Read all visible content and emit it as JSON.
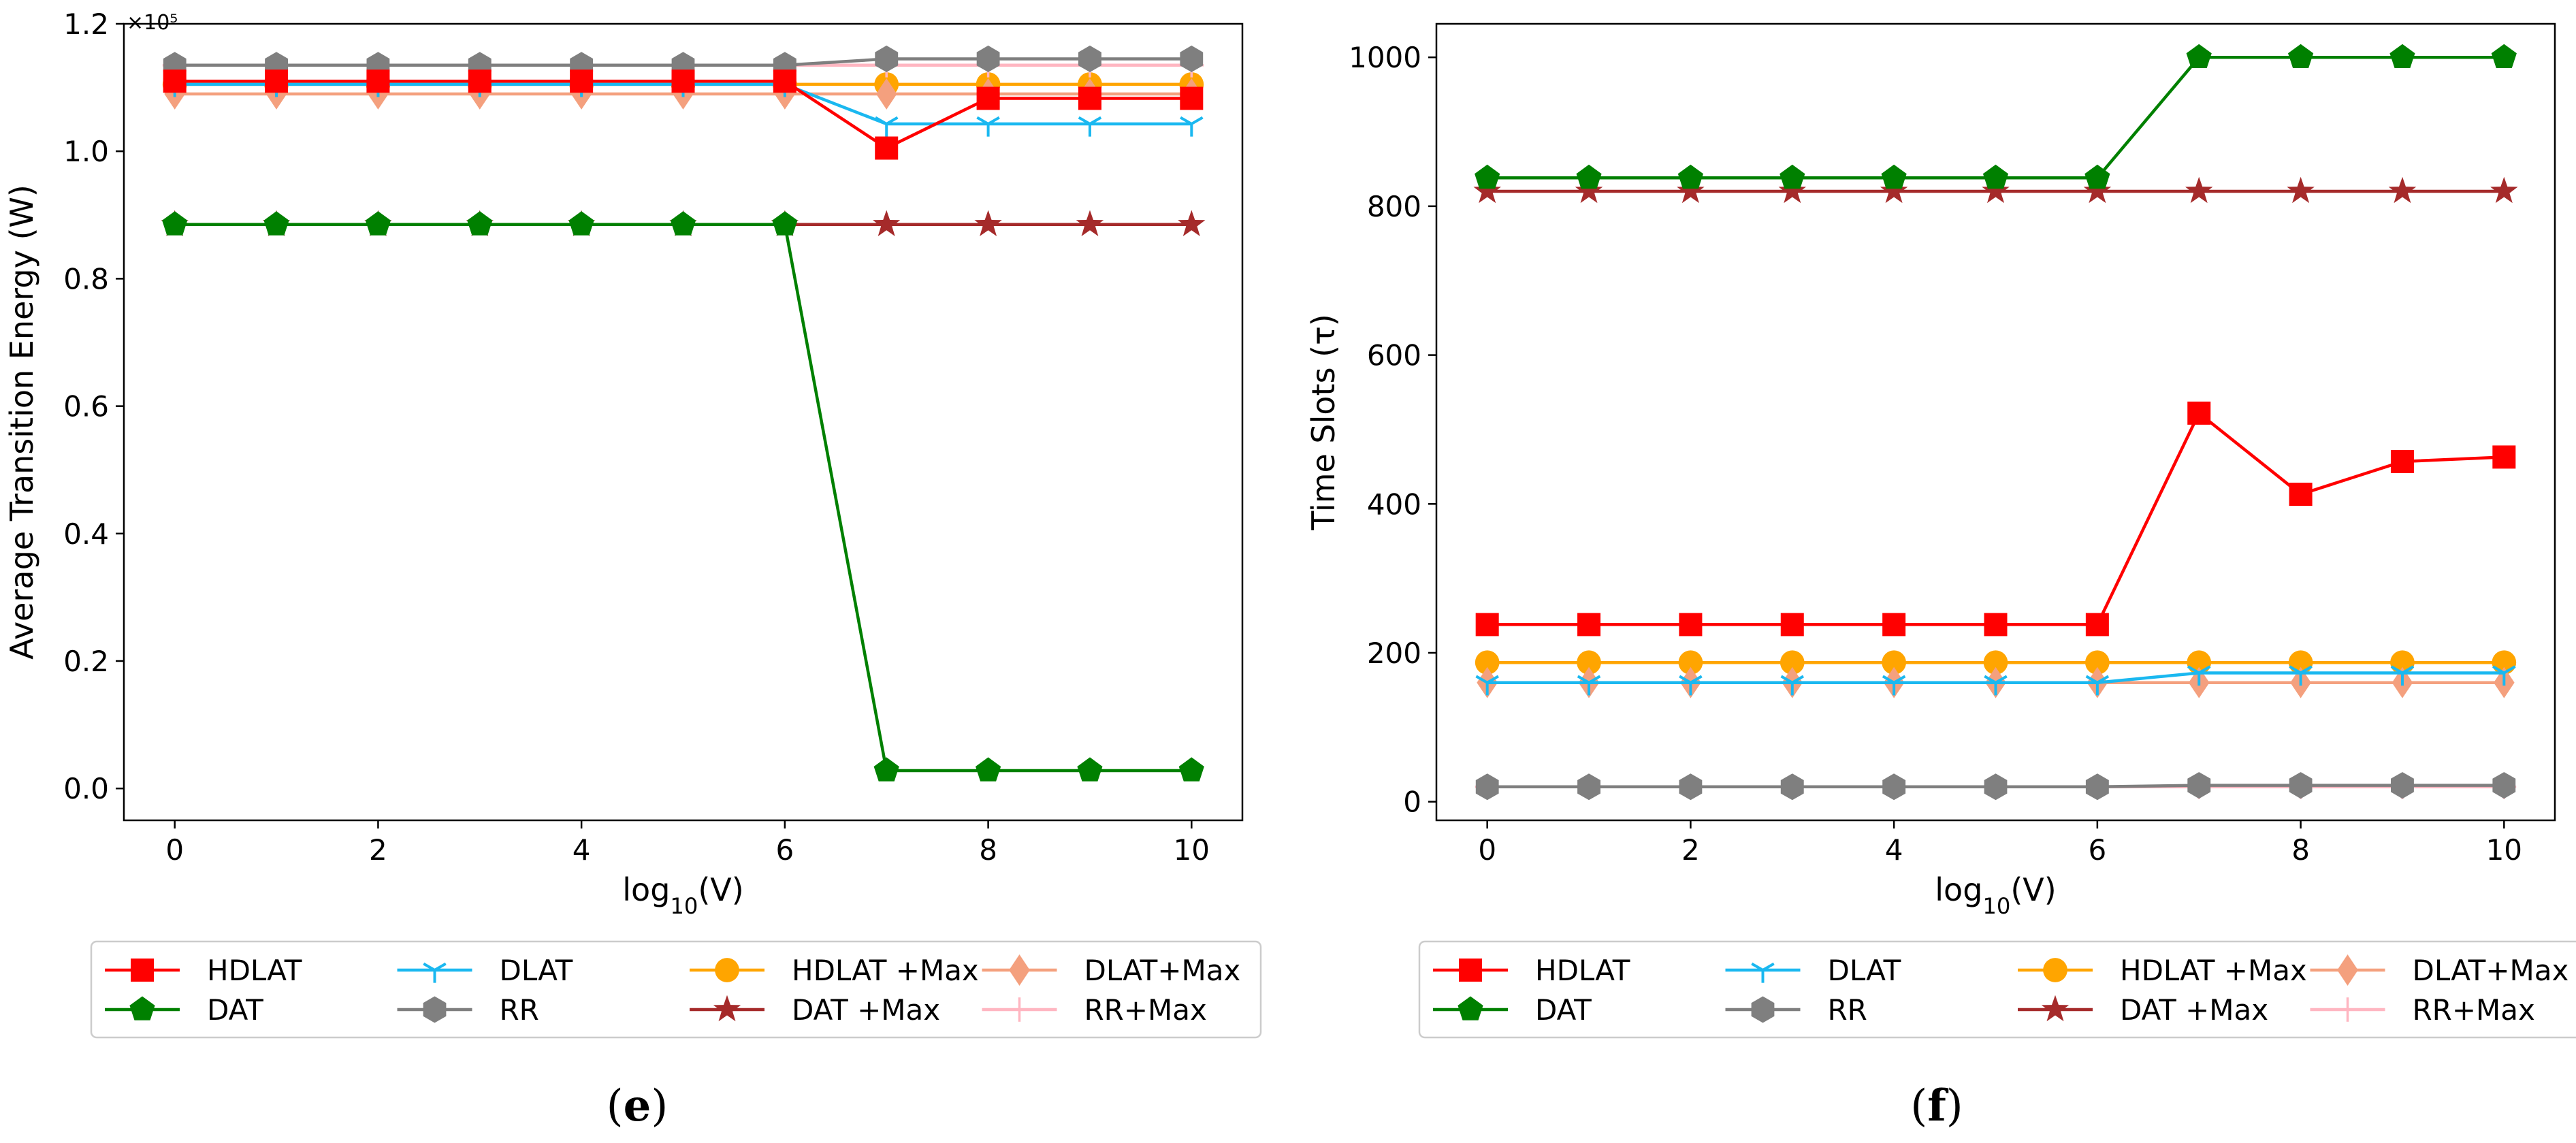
{
  "chart_data": [
    {
      "id": "e",
      "type": "line",
      "panel_label": "(e)",
      "ylabel": "Average Transition Energy (W)",
      "xlabel": "log10(V)",
      "y_scale_label": "×10⁵",
      "xlim": [
        -0.5,
        10.5
      ],
      "ylim": [
        -0.05,
        1.2
      ],
      "xticks": [
        "0",
        "2",
        "4",
        "6",
        "8",
        "10"
      ],
      "yticks": [
        "0.0",
        "0.2",
        "0.4",
        "0.6",
        "0.8",
        "1.0",
        "1.2"
      ],
      "x": [
        0,
        1,
        2,
        3,
        4,
        5,
        6,
        7,
        8,
        9,
        10
      ],
      "series": [
        {
          "name": "HDLAT",
          "color": "#ff0000",
          "marker": "square",
          "values": [
            1.11,
            1.11,
            1.11,
            1.11,
            1.11,
            1.11,
            1.11,
            1.005,
            1.083,
            1.083,
            1.083
          ]
        },
        {
          "name": "DAT",
          "color": "#008000",
          "marker": "pentagon",
          "values": [
            0.885,
            0.885,
            0.885,
            0.885,
            0.885,
            0.885,
            0.885,
            0.028,
            0.028,
            0.028,
            0.028
          ]
        },
        {
          "name": "DLAT",
          "color": "#1ab8f0",
          "marker": "tri",
          "values": [
            1.105,
            1.105,
            1.105,
            1.105,
            1.105,
            1.105,
            1.105,
            1.043,
            1.043,
            1.043,
            1.043
          ]
        },
        {
          "name": "RR",
          "color": "#7f7f7f",
          "marker": "hexagon",
          "values": [
            1.135,
            1.135,
            1.135,
            1.135,
            1.135,
            1.135,
            1.135,
            1.145,
            1.145,
            1.145,
            1.145
          ]
        },
        {
          "name": "HDLAT +Max",
          "color": "#ffa500",
          "marker": "circle",
          "values": [
            1.105,
            1.105,
            1.105,
            1.105,
            1.105,
            1.105,
            1.105,
            1.105,
            1.105,
            1.105,
            1.105
          ]
        },
        {
          "name": "DAT +Max",
          "color": "#a52a2a",
          "marker": "star",
          "values": [
            0.885,
            0.885,
            0.885,
            0.885,
            0.885,
            0.885,
            0.885,
            0.885,
            0.885,
            0.885,
            0.885
          ]
        },
        {
          "name": "DLAT+Max",
          "color": "#f4a07e",
          "marker": "diamond",
          "values": [
            1.09,
            1.09,
            1.09,
            1.09,
            1.09,
            1.09,
            1.09,
            1.09,
            1.09,
            1.09,
            1.09
          ]
        },
        {
          "name": "RR+Max",
          "color": "#ffb6c1",
          "marker": "plus",
          "values": [
            1.135,
            1.135,
            1.135,
            1.135,
            1.135,
            1.135,
            1.135,
            1.135,
            1.135,
            1.135,
            1.135
          ]
        }
      ],
      "legend": {
        "placement": "bottom",
        "columns": 4
      }
    },
    {
      "id": "f",
      "type": "line",
      "panel_label": "(f)",
      "ylabel": "Time Slots (τ)",
      "xlabel": "log10(V)",
      "xlim": [
        -0.5,
        10.5
      ],
      "ylim": [
        -25,
        1045
      ],
      "xticks": [
        "0",
        "2",
        "4",
        "6",
        "8",
        "10"
      ],
      "yticks": [
        "0",
        "200",
        "400",
        "600",
        "800",
        "1000"
      ],
      "x": [
        0,
        1,
        2,
        3,
        4,
        5,
        6,
        7,
        8,
        9,
        10
      ],
      "series": [
        {
          "name": "HDLAT",
          "color": "#ff0000",
          "marker": "square",
          "values": [
            238,
            238,
            238,
            238,
            238,
            238,
            238,
            522,
            413,
            457,
            463
          ]
        },
        {
          "name": "DAT",
          "color": "#008000",
          "marker": "pentagon",
          "values": [
            838,
            838,
            838,
            838,
            838,
            838,
            838,
            1000,
            1000,
            1000,
            1000
          ]
        },
        {
          "name": "DLAT",
          "color": "#1ab8f0",
          "marker": "tri",
          "values": [
            160,
            160,
            160,
            160,
            160,
            160,
            160,
            173,
            173,
            173,
            173
          ]
        },
        {
          "name": "RR",
          "color": "#7f7f7f",
          "marker": "hexagon",
          "values": [
            20,
            20,
            20,
            20,
            20,
            20,
            20,
            22,
            22,
            22,
            22
          ]
        },
        {
          "name": "HDLAT +Max",
          "color": "#ffa500",
          "marker": "circle",
          "values": [
            187,
            187,
            187,
            187,
            187,
            187,
            187,
            187,
            187,
            187,
            187
          ]
        },
        {
          "name": "DAT +Max",
          "color": "#a52a2a",
          "marker": "star",
          "values": [
            820,
            820,
            820,
            820,
            820,
            820,
            820,
            820,
            820,
            820,
            820
          ]
        },
        {
          "name": "DLAT+Max",
          "color": "#f4a07e",
          "marker": "diamond",
          "values": [
            160,
            160,
            160,
            160,
            160,
            160,
            160,
            160,
            160,
            160,
            160
          ]
        },
        {
          "name": "RR+Max",
          "color": "#ffb6c1",
          "marker": "plus",
          "values": [
            20,
            20,
            20,
            20,
            20,
            20,
            20,
            20,
            20,
            20,
            20
          ]
        }
      ],
      "legend": {
        "placement": "bottom",
        "columns": 4
      }
    }
  ]
}
